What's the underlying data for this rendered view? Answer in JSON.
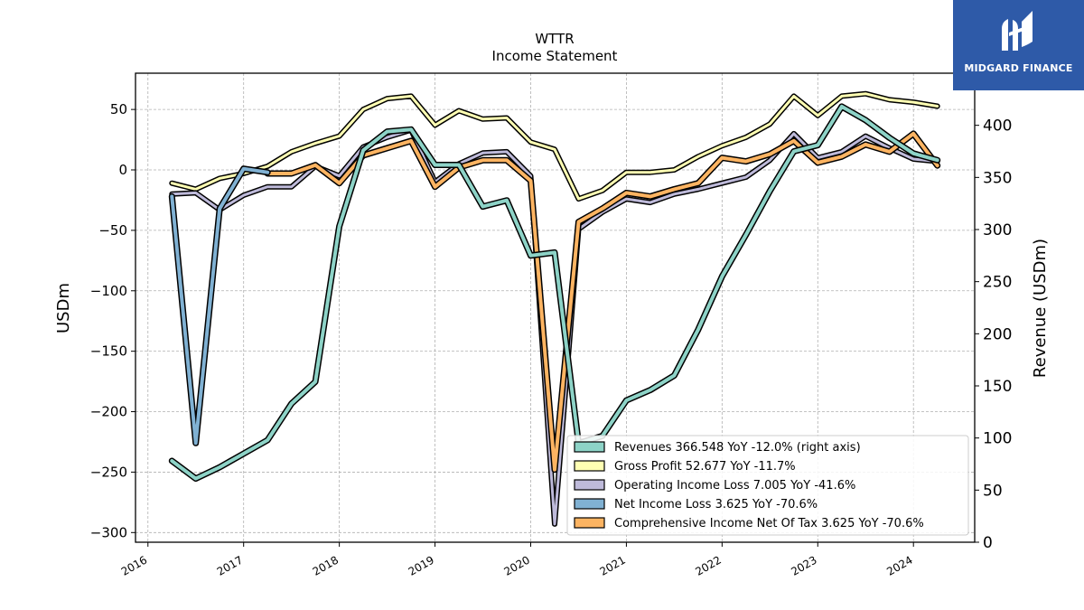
{
  "logo": {
    "text": "MIDGARD FINANCE"
  },
  "chart_data": {
    "type": "line",
    "title": "WTTR",
    "subtitle": "Income Statement",
    "ylabel_left": "USDm",
    "ylabel_right": "Revenue (USDm)",
    "xlabel": "",
    "left_ylim": [
      -308,
      80
    ],
    "right_ylim": [
      0,
      450
    ],
    "x_range": [
      2015.87,
      2024.64
    ],
    "left_yticks": [
      50,
      0,
      -50,
      -100,
      -150,
      -200,
      -250,
      -300
    ],
    "left_ytick_labels": [
      "50",
      "0",
      "−50",
      "−100",
      "−150",
      "−200",
      "−250",
      "−300"
    ],
    "right_yticks": [
      400,
      350,
      300,
      250,
      200,
      150,
      100,
      50,
      0
    ],
    "right_ytick_labels": [
      "400",
      "350",
      "300",
      "250",
      "200",
      "150",
      "100",
      "50",
      "0"
    ],
    "xticks": [
      2016,
      2017,
      2018,
      2019,
      2020,
      2021,
      2022,
      2023,
      2024
    ],
    "xtick_labels": [
      "2016",
      "2017",
      "2018",
      "2019",
      "2020",
      "2021",
      "2022",
      "2023",
      "2024"
    ],
    "grid": true,
    "legend_position": "lower-right",
    "x": [
      2016.25,
      2016.5,
      2016.75,
      2017.0,
      2017.25,
      2017.5,
      2017.75,
      2018.0,
      2018.25,
      2018.5,
      2018.75,
      2019.0,
      2019.25,
      2019.5,
      2019.75,
      2020.0,
      2020.25,
      2020.5,
      2020.75,
      2021.0,
      2021.25,
      2021.5,
      2021.75,
      2022.0,
      2022.25,
      2022.5,
      2022.75,
      2023.0,
      2023.25,
      2023.5,
      2023.75,
      2024.0,
      2024.25
    ],
    "series": [
      {
        "name": "Revenues  366.548 YoY -12.0% (right axis)",
        "color": "#8dd3c7",
        "width": 4,
        "axis": "right",
        "values": [
          78,
          61,
          72,
          85,
          98,
          133,
          154,
          303,
          376,
          394,
          396,
          362,
          362,
          322,
          328,
          275,
          278,
          95,
          102,
          136,
          146,
          160,
          204,
          255,
          295,
          337,
          375,
          381,
          418,
          405,
          388,
          373,
          366.548
        ]
      },
      {
        "name": "Gross Profit  52.677 YoY -11.7%",
        "color": "#ffffb3",
        "width": 3,
        "axis": "left",
        "values": [
          -11,
          -16,
          -7,
          -3,
          3,
          15,
          22,
          28,
          50,
          59,
          61,
          37,
          49,
          42,
          43,
          23,
          17,
          -24,
          -17,
          -2,
          -2,
          0,
          11,
          20,
          27,
          38,
          61,
          45,
          61,
          63,
          58,
          56,
          52.677
        ]
      },
      {
        "name": "Operating Income Loss  7.005 YoY -41.6%",
        "color": "#bebada",
        "width": 3,
        "axis": "left",
        "values": [
          -20,
          -19,
          -33,
          -21,
          -14,
          -14,
          3,
          -5,
          19,
          27,
          33,
          -10,
          5,
          14,
          15,
          -5,
          -293,
          -49,
          -35,
          -24,
          -27,
          -20,
          -16,
          -11,
          -6,
          8,
          30,
          10,
          15,
          28,
          18,
          9,
          7.005
        ]
      },
      {
        "name": "Net Income Loss  3.625 YoY -70.6%",
        "color": "#80b1d3",
        "width": 4,
        "axis": "left",
        "values": [
          -22,
          -226,
          -32,
          1,
          -2,
          null,
          null,
          null,
          null,
          null,
          null,
          null,
          null,
          null,
          null,
          null,
          null,
          null,
          null,
          null,
          null,
          null,
          null,
          null,
          null,
          null,
          null,
          null,
          null,
          null,
          null,
          null,
          null
        ]
      },
      {
        "name": "Comprehensive Income Net Of Tax  3.625 YoY -70.6%",
        "color": "#fdb462",
        "width": 4,
        "axis": "left",
        "values": [
          null,
          null,
          null,
          null,
          -3,
          -3,
          4,
          -11,
          12,
          18,
          24,
          -14,
          2,
          8,
          8,
          -9,
          -248,
          -43,
          -32,
          -19,
          -22,
          -16,
          -11,
          10,
          7,
          13,
          24,
          6,
          11,
          21,
          15,
          30,
          3.625
        ]
      }
    ]
  }
}
